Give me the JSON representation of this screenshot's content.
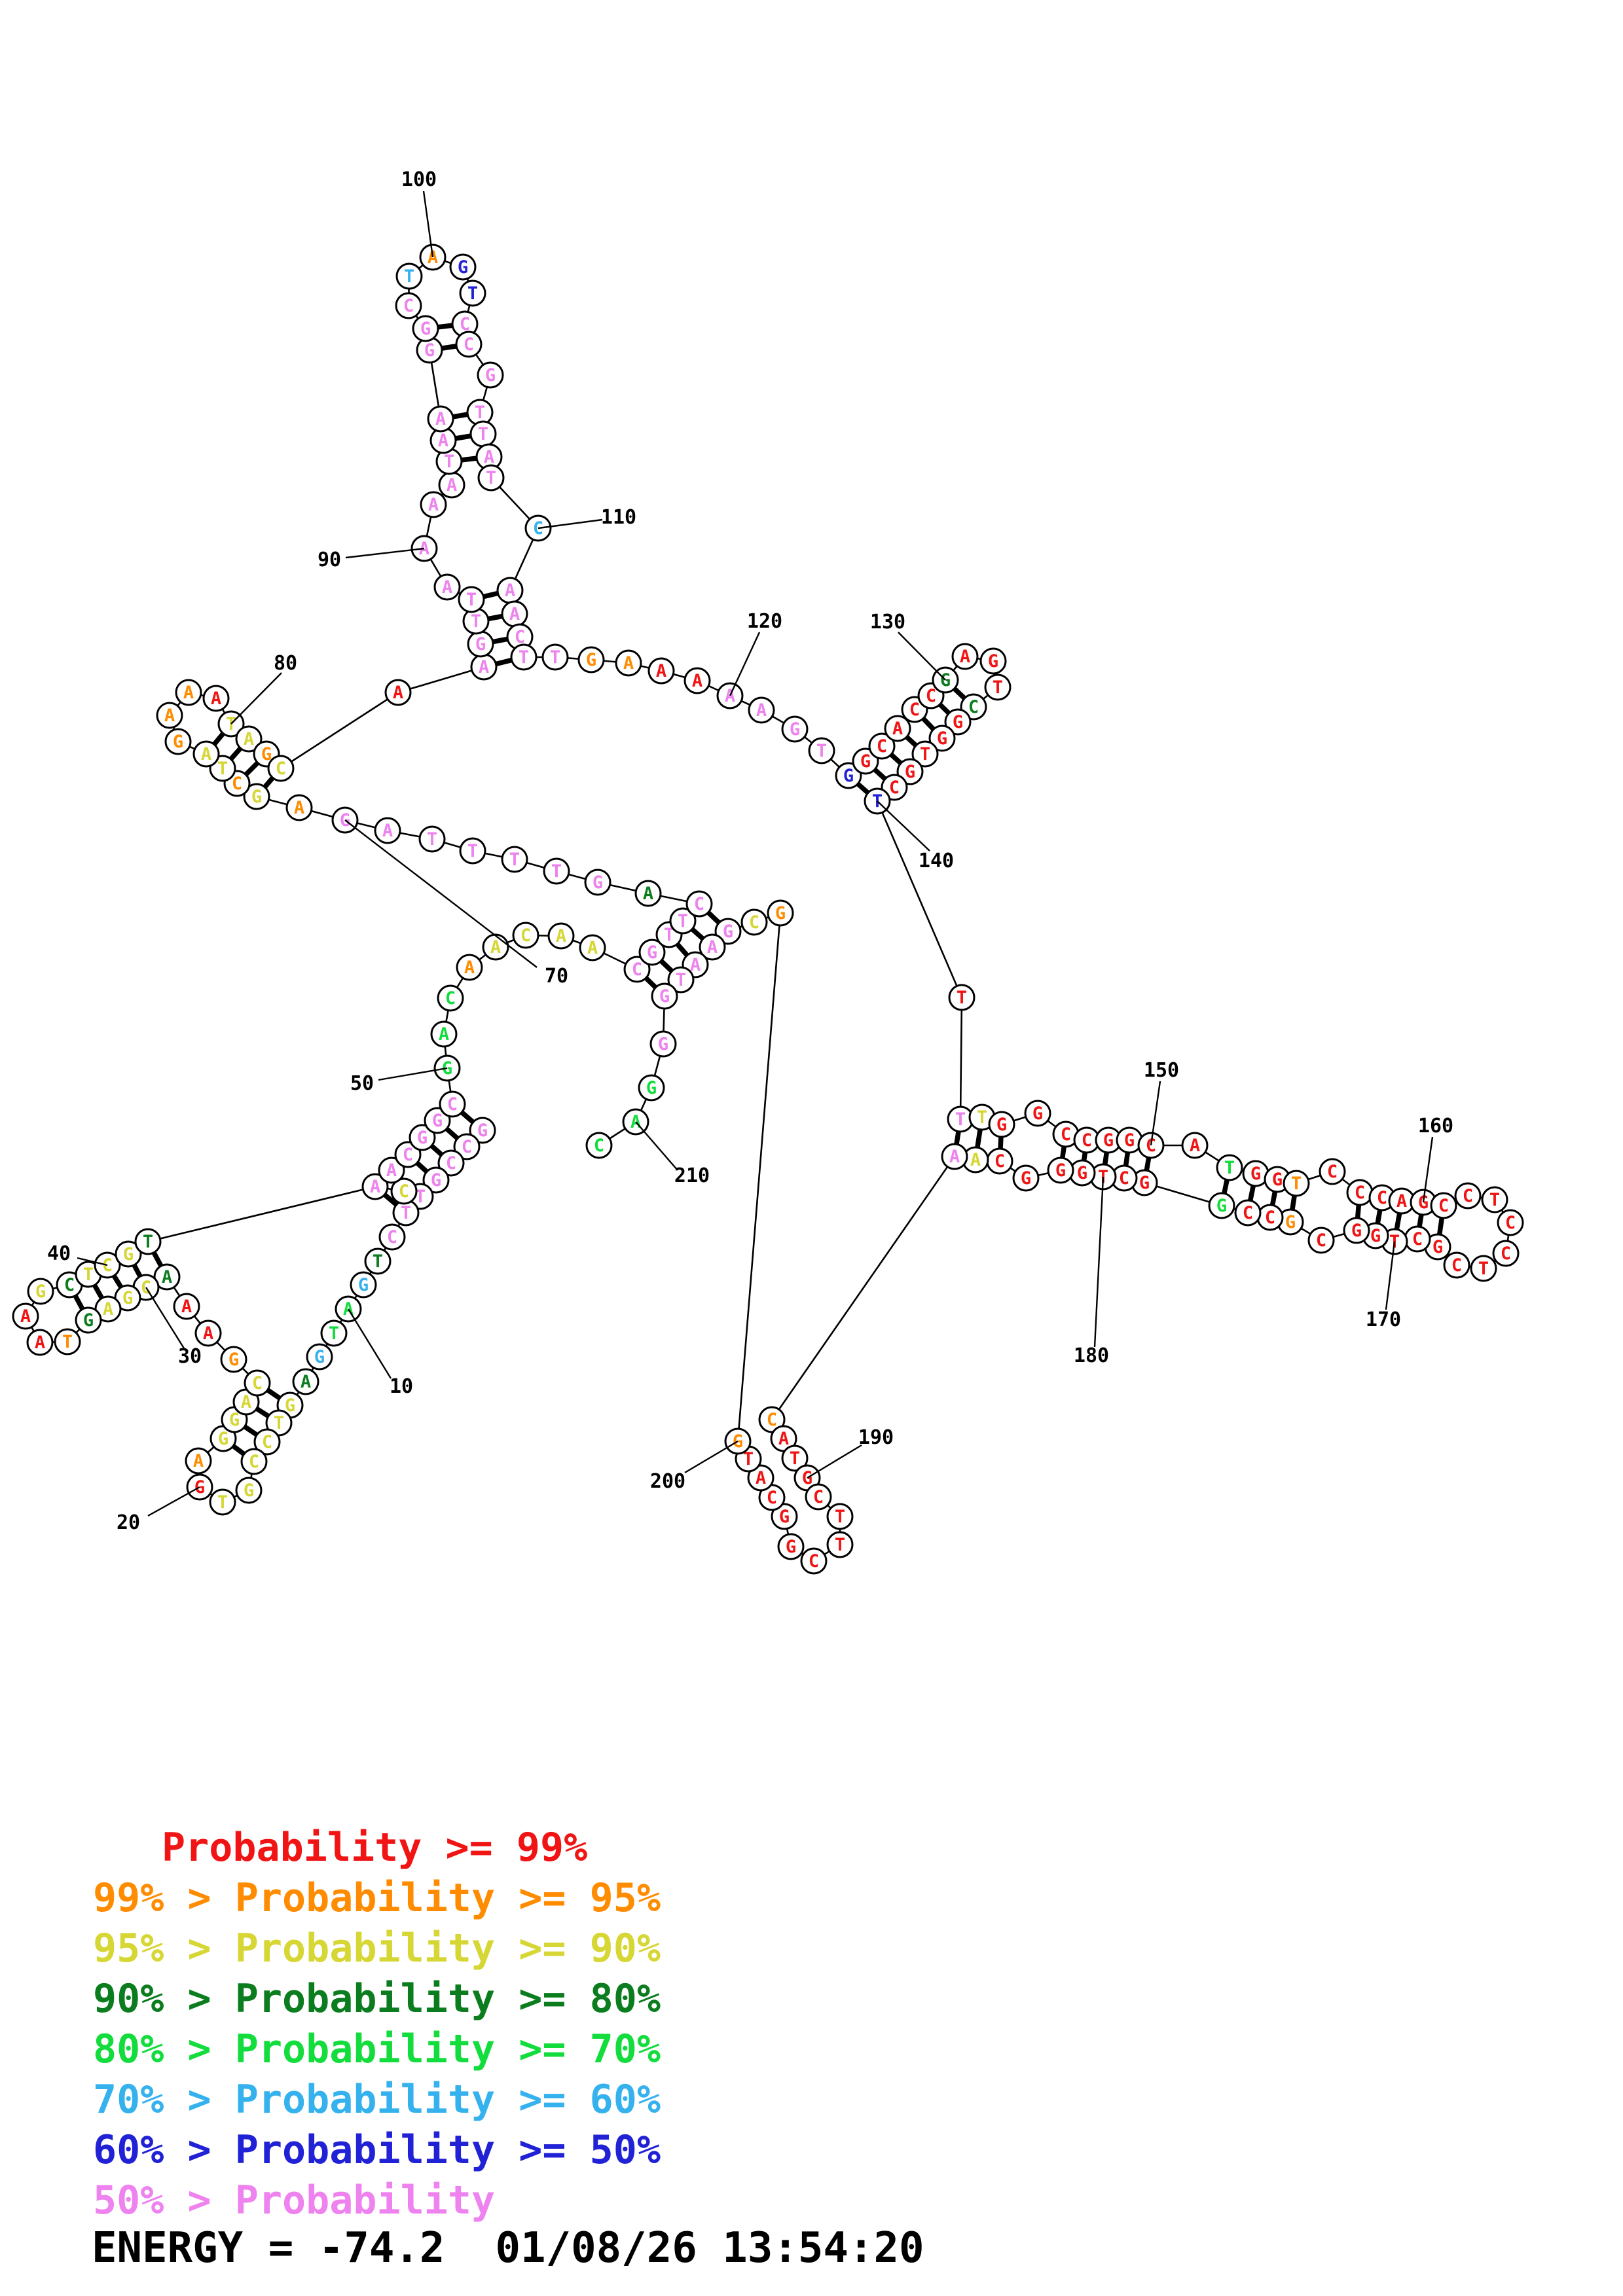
{
  "colors": {
    "r": "#f01414",
    "o": "#ff8c00",
    "y": "#d6d635",
    "dg": "#0c7d1f",
    "g": "#12dd3c",
    "c": "#35b2ee",
    "b": "#2121d6",
    "m": "#ee82ee",
    "ink": "#000000"
  },
  "legend": {
    "items": [
      {
        "text": "Probability >= 99%",
        "color": "r"
      },
      {
        "text": "99% > Probability >= 95%",
        "color": "o"
      },
      {
        "text": "95% > Probability >= 90%",
        "color": "y"
      },
      {
        "text": "90% > Probability >= 80%",
        "color": "dg"
      },
      {
        "text": "80% > Probability >= 70%",
        "color": "g"
      },
      {
        "text": "70% > Probability >= 60%",
        "color": "c"
      },
      {
        "text": "60% > Probability >= 50%",
        "color": "b"
      },
      {
        "text": "50% > Probability",
        "color": "m"
      }
    ]
  },
  "footer": {
    "energy_text": "ENERGY = -74.2  01/08/26 13:54:20"
  },
  "structure": {
    "node_radius": 19,
    "nodes": [
      [
        737,
        1727,
        "G",
        "m"
      ],
      [
        713,
        1752,
        "C",
        "m"
      ],
      [
        689,
        1777,
        "C",
        "m"
      ],
      [
        666,
        1803,
        "G",
        "m"
      ],
      [
        642,
        1828,
        "T",
        "m"
      ],
      [
        620,
        1853,
        "T",
        "m"
      ],
      [
        599,
        1890,
        "C",
        "m"
      ],
      [
        577,
        1927,
        "T",
        "dg"
      ],
      [
        555,
        1963,
        "G",
        "c"
      ],
      [
        532,
        2000,
        "A",
        "g"
      ],
      [
        510,
        2037,
        "T",
        "g"
      ],
      [
        488,
        2073,
        "G",
        "c"
      ],
      [
        467,
        2111,
        "A",
        "dg"
      ],
      [
        443,
        2147,
        "G",
        "y"
      ],
      [
        426,
        2174,
        "T",
        "y"
      ],
      [
        408,
        2203,
        "C",
        "y"
      ],
      [
        388,
        2233,
        "C",
        "y"
      ],
      [
        380,
        2277,
        "G",
        "y"
      ],
      [
        340,
        2295,
        "T",
        "y"
      ],
      [
        305,
        2272,
        "G",
        "r"
      ],
      [
        303,
        2232,
        "A",
        "o"
      ],
      [
        341,
        2198,
        "G",
        "y"
      ],
      [
        358,
        2169,
        "G",
        "y"
      ],
      [
        376,
        2142,
        "A",
        "y"
      ],
      [
        393,
        2113,
        "C",
        "y"
      ],
      [
        357,
        2077,
        "G",
        "o"
      ],
      [
        318,
        2037,
        "A",
        "r"
      ],
      [
        285,
        1996,
        "A",
        "r"
      ],
      [
        255,
        1951,
        "A",
        "dg"
      ],
      [
        223,
        1967,
        "C",
        "y"
      ],
      [
        195,
        1983,
        "G",
        "y"
      ],
      [
        165,
        2000,
        "A",
        "y"
      ],
      [
        135,
        2017,
        "G",
        "dg"
      ],
      [
        103,
        2050,
        "T",
        "o"
      ],
      [
        61,
        2051,
        "A",
        "r"
      ],
      [
        39,
        2011,
        "A",
        "r"
      ],
      [
        62,
        1973,
        "G",
        "y"
      ],
      [
        106,
        1963,
        "C",
        "dg"
      ],
      [
        135,
        1947,
        "T",
        "y"
      ],
      [
        164,
        1933,
        "C",
        "y"
      ],
      [
        196,
        1916,
        "G",
        "y"
      ],
      [
        226,
        1897,
        "T",
        "dg"
      ],
      [
        573,
        1813,
        "A",
        "m"
      ],
      [
        617,
        1820,
        "C",
        "y"
      ],
      [
        598,
        1788,
        "A",
        "m"
      ],
      [
        623,
        1764,
        "C",
        "m"
      ],
      [
        645,
        1738,
        "G",
        "m"
      ],
      [
        668,
        1712,
        "G",
        "m"
      ],
      [
        691,
        1687,
        "C",
        "m"
      ],
      [
        683,
        1632,
        "G",
        "g"
      ],
      [
        678,
        1580,
        "A",
        "g"
      ],
      [
        688,
        1525,
        "C",
        "g"
      ],
      [
        717,
        1478,
        "A",
        "o"
      ],
      [
        757,
        1447,
        "A",
        "y"
      ],
      [
        803,
        1429,
        "C",
        "y"
      ],
      [
        857,
        1430,
        "A",
        "y"
      ],
      [
        905,
        1448,
        "A",
        "y"
      ],
      [
        973,
        1481,
        "C",
        "m"
      ],
      [
        996,
        1455,
        "G",
        "m"
      ],
      [
        1022,
        1428,
        "T",
        "m"
      ],
      [
        1043,
        1407,
        "T",
        "m"
      ],
      [
        1068,
        1381,
        "C",
        "m"
      ],
      [
        990,
        1365,
        "A",
        "dg"
      ],
      [
        913,
        1348,
        "G",
        "m"
      ],
      [
        850,
        1331,
        "T",
        "m"
      ],
      [
        786,
        1313,
        "T",
        "m"
      ],
      [
        722,
        1300,
        "T",
        "m"
      ],
      [
        660,
        1282,
        "T",
        "m"
      ],
      [
        592,
        1269,
        "A",
        "m"
      ],
      [
        527,
        1253,
        "G",
        "m"
      ],
      [
        457,
        1234,
        "A",
        "o"
      ],
      [
        392,
        1217,
        "G",
        "y"
      ],
      [
        362,
        1197,
        "C",
        "o"
      ],
      [
        340,
        1174,
        "T",
        "y"
      ],
      [
        315,
        1152,
        "A",
        "y"
      ],
      [
        272,
        1133,
        "G",
        "o"
      ],
      [
        259,
        1093,
        "A",
        "o"
      ],
      [
        288,
        1058,
        "A",
        "o"
      ],
      [
        330,
        1067,
        "A",
        "r"
      ],
      [
        353,
        1106,
        "T",
        "y"
      ],
      [
        380,
        1129,
        "A",
        "y"
      ],
      [
        407,
        1152,
        "G",
        "o"
      ],
      [
        429,
        1174,
        "C",
        "y"
      ],
      [
        608,
        1058,
        "A",
        "r"
      ],
      [
        739,
        1019,
        "A",
        "m"
      ],
      [
        734,
        984,
        "G",
        "m"
      ],
      [
        727,
        949,
        "T",
        "m"
      ],
      [
        720,
        916,
        "T",
        "m"
      ],
      [
        683,
        897,
        "A",
        "m"
      ],
      [
        648,
        838,
        "A",
        "m"
      ],
      [
        662,
        771,
        "A",
        "m"
      ],
      [
        690,
        741,
        "A",
        "m"
      ],
      [
        686,
        705,
        "T",
        "m"
      ],
      [
        677,
        673,
        "A",
        "m"
      ],
      [
        673,
        640,
        "A",
        "m"
      ],
      [
        656,
        535,
        "G",
        "m"
      ],
      [
        650,
        502,
        "G",
        "m"
      ],
      [
        624,
        467,
        "C",
        "m"
      ],
      [
        625,
        422,
        "T",
        "c"
      ],
      [
        661,
        393,
        "A",
        "o"
      ],
      [
        707,
        408,
        "G",
        "b"
      ],
      [
        722,
        448,
        "T",
        "b"
      ],
      [
        710,
        495,
        "C",
        "m"
      ],
      [
        716,
        526,
        "C",
        "m"
      ],
      [
        749,
        573,
        "G",
        "m"
      ],
      [
        733,
        630,
        "T",
        "m"
      ],
      [
        738,
        663,
        "T",
        "m"
      ],
      [
        747,
        698,
        "A",
        "m"
      ],
      [
        750,
        730,
        "T",
        "m"
      ],
      [
        822,
        807,
        "C",
        "c"
      ],
      [
        779,
        902,
        "A",
        "m"
      ],
      [
        786,
        938,
        "A",
        "m"
      ],
      [
        794,
        973,
        "C",
        "m"
      ],
      [
        800,
        1004,
        "T",
        "m"
      ],
      [
        848,
        1004,
        "T",
        "m"
      ],
      [
        903,
        1008,
        "G",
        "o"
      ],
      [
        960,
        1013,
        "A",
        "o"
      ],
      [
        1010,
        1025,
        "A",
        "r"
      ],
      [
        1065,
        1040,
        "A",
        "r"
      ],
      [
        1115,
        1063,
        "A",
        "m"
      ],
      [
        1163,
        1085,
        "A",
        "m"
      ],
      [
        1214,
        1114,
        "G",
        "m"
      ],
      [
        1255,
        1147,
        "T",
        "m"
      ],
      [
        1296,
        1185,
        "G",
        "b"
      ],
      [
        1322,
        1163,
        "G",
        "r"
      ],
      [
        1347,
        1140,
        "C",
        "r"
      ],
      [
        1371,
        1113,
        "A",
        "r"
      ],
      [
        1397,
        1084,
        "C",
        "r"
      ],
      [
        1422,
        1063,
        "C",
        "r"
      ],
      [
        1444,
        1039,
        "G",
        "dg"
      ],
      [
        1474,
        1003,
        "A",
        "r"
      ],
      [
        1517,
        1010,
        "G",
        "r"
      ],
      [
        1524,
        1050,
        "T",
        "r"
      ],
      [
        1487,
        1080,
        "C",
        "dg"
      ],
      [
        1463,
        1103,
        "G",
        "r"
      ],
      [
        1439,
        1128,
        "G",
        "r"
      ],
      [
        1413,
        1152,
        "T",
        "r"
      ],
      [
        1390,
        1179,
        "G",
        "r"
      ],
      [
        1366,
        1203,
        "C",
        "r"
      ],
      [
        1340,
        1224,
        "T",
        "b"
      ],
      [
        1469,
        1524,
        "T",
        "r"
      ],
      [
        1467,
        1710,
        "T",
        "m"
      ],
      [
        1500,
        1707,
        "T",
        "y"
      ],
      [
        1530,
        1718,
        "G",
        "r"
      ],
      [
        1585,
        1701,
        "G",
        "r"
      ],
      [
        1628,
        1733,
        "C",
        "r"
      ],
      [
        1660,
        1742,
        "C",
        "r"
      ],
      [
        1693,
        1742,
        "G",
        "r"
      ],
      [
        1725,
        1742,
        "G",
        "r"
      ],
      [
        1758,
        1750,
        "C",
        "r"
      ],
      [
        1825,
        1750,
        "A",
        "r"
      ],
      [
        1878,
        1784,
        "T",
        "g"
      ],
      [
        1918,
        1793,
        "G",
        "r"
      ],
      [
        1951,
        1802,
        "G",
        "r"
      ],
      [
        1980,
        1808,
        "T",
        "o"
      ],
      [
        2035,
        1790,
        "C",
        "r"
      ],
      [
        2077,
        1822,
        "C",
        "r"
      ],
      [
        2111,
        1830,
        "C",
        "r"
      ],
      [
        2141,
        1835,
        "A",
        "r"
      ],
      [
        2174,
        1837,
        "G",
        "r"
      ],
      [
        2205,
        1842,
        "C",
        "r"
      ],
      [
        2242,
        1827,
        "C",
        "r"
      ],
      [
        2283,
        1833,
        "T",
        "r"
      ],
      [
        2307,
        1868,
        "C",
        "r"
      ],
      [
        2300,
        1915,
        "C",
        "r"
      ],
      [
        2266,
        1938,
        "T",
        "r"
      ],
      [
        2225,
        1933,
        "C",
        "r"
      ],
      [
        2196,
        1905,
        "G",
        "r"
      ],
      [
        2165,
        1893,
        "C",
        "r"
      ],
      [
        2130,
        1897,
        "T",
        "r"
      ],
      [
        2101,
        1888,
        "G",
        "r"
      ],
      [
        2072,
        1880,
        "G",
        "r"
      ],
      [
        2018,
        1895,
        "C",
        "r"
      ],
      [
        1971,
        1867,
        "G",
        "o"
      ],
      [
        1940,
        1860,
        "C",
        "r"
      ],
      [
        1906,
        1853,
        "C",
        "r"
      ],
      [
        1866,
        1842,
        "G",
        "g"
      ],
      [
        1748,
        1807,
        "G",
        "r"
      ],
      [
        1717,
        1800,
        "C",
        "r"
      ],
      [
        1685,
        1798,
        "T",
        "r"
      ],
      [
        1653,
        1792,
        "G",
        "r"
      ],
      [
        1620,
        1788,
        "G",
        "r"
      ],
      [
        1567,
        1800,
        "G",
        "r"
      ],
      [
        1527,
        1774,
        "C",
        "r"
      ],
      [
        1490,
        1772,
        "A",
        "y"
      ],
      [
        1458,
        1767,
        "A",
        "m"
      ],
      [
        1179,
        2169,
        "C",
        "o"
      ],
      [
        1197,
        2198,
        "A",
        "r"
      ],
      [
        1214,
        2228,
        "T",
        "r"
      ],
      [
        1233,
        2258,
        "G",
        "r"
      ],
      [
        1250,
        2287,
        "C",
        "r"
      ],
      [
        1283,
        2317,
        "T",
        "r"
      ],
      [
        1283,
        2360,
        "T",
        "r"
      ],
      [
        1243,
        2385,
        "C",
        "r"
      ],
      [
        1208,
        2363,
        "G",
        "r"
      ],
      [
        1198,
        2317,
        "G",
        "r"
      ],
      [
        1179,
        2288,
        "C",
        "r"
      ],
      [
        1162,
        2258,
        "A",
        "r"
      ],
      [
        1143,
        2229,
        "T",
        "r"
      ],
      [
        1127,
        2202,
        "G",
        "o"
      ],
      [
        1192,
        1395,
        "G",
        "o"
      ],
      [
        1152,
        1409,
        "C",
        "y"
      ],
      [
        1112,
        1423,
        "G",
        "m"
      ],
      [
        1088,
        1447,
        "A",
        "m"
      ],
      [
        1062,
        1474,
        "A",
        "m"
      ],
      [
        1040,
        1497,
        "T",
        "m"
      ],
      [
        1015,
        1522,
        "G",
        "m"
      ],
      [
        1013,
        1595,
        "G",
        "m"
      ],
      [
        995,
        1662,
        "G",
        "g"
      ],
      [
        971,
        1714,
        "A",
        "g"
      ],
      [
        915,
        1750,
        "C",
        "g"
      ]
    ],
    "pairs": [
      [
        1,
        49
      ],
      [
        2,
        48
      ],
      [
        3,
        47
      ],
      [
        4,
        46
      ],
      [
        5,
        45
      ],
      [
        6,
        43
      ],
      [
        14,
        25
      ],
      [
        15,
        24
      ],
      [
        16,
        23
      ],
      [
        17,
        22
      ],
      [
        29,
        42
      ],
      [
        30,
        41
      ],
      [
        31,
        40
      ],
      [
        32,
        39
      ],
      [
        33,
        38
      ],
      [
        58,
        207
      ],
      [
        59,
        206
      ],
      [
        60,
        205
      ],
      [
        61,
        204
      ],
      [
        62,
        203
      ],
      [
        72,
        83
      ],
      [
        73,
        82
      ],
      [
        74,
        81
      ],
      [
        75,
        80
      ],
      [
        85,
        114
      ],
      [
        86,
        113
      ],
      [
        87,
        112
      ],
      [
        88,
        111
      ],
      [
        93,
        108
      ],
      [
        94,
        107
      ],
      [
        95,
        106
      ],
      [
        96,
        104
      ],
      [
        97,
        103
      ],
      [
        124,
        140
      ],
      [
        125,
        139
      ],
      [
        126,
        138
      ],
      [
        127,
        137
      ],
      [
        128,
        136
      ],
      [
        129,
        135
      ],
      [
        130,
        134
      ],
      [
        142,
        186
      ],
      [
        143,
        185
      ],
      [
        144,
        184
      ],
      [
        146,
        182
      ],
      [
        147,
        181
      ],
      [
        148,
        180
      ],
      [
        149,
        179
      ],
      [
        150,
        178
      ],
      [
        152,
        177
      ],
      [
        153,
        176
      ],
      [
        154,
        175
      ],
      [
        155,
        174
      ],
      [
        157,
        172
      ],
      [
        158,
        171
      ],
      [
        159,
        170
      ],
      [
        160,
        169
      ],
      [
        161,
        168
      ]
    ],
    "labels": [
      [
        "10",
        613,
        2119,
        597,
        2106,
        10
      ],
      [
        "20",
        196,
        2327,
        226,
        2316,
        20
      ],
      [
        "30",
        290,
        2073,
        281,
        2060,
        30
      ],
      [
        "40",
        90,
        1916,
        118,
        1922,
        40
      ],
      [
        "50",
        553,
        1656,
        578,
        1650,
        50
      ],
      [
        "70",
        850,
        1492,
        820,
        1478,
        70
      ],
      [
        "80",
        436,
        1014,
        430,
        1028,
        80
      ],
      [
        "90",
        503,
        856,
        528,
        852,
        90
      ],
      [
        "100",
        640,
        275,
        647,
        292,
        100
      ],
      [
        "110",
        945,
        791,
        920,
        794,
        110
      ],
      [
        "120",
        1168,
        950,
        1160,
        966,
        120
      ],
      [
        "130",
        1356,
        951,
        1372,
        966,
        130
      ],
      [
        "140",
        1430,
        1316,
        1420,
        1300,
        140
      ],
      [
        "150",
        1774,
        1636,
        1772,
        1652,
        150
      ],
      [
        "160",
        2193,
        1721,
        2188,
        1737,
        160
      ],
      [
        "170",
        2113,
        2017,
        2117,
        2001,
        170
      ],
      [
        "180",
        1667,
        2072,
        1672,
        2058,
        180
      ],
      [
        "190",
        1338,
        2197,
        1316,
        2208,
        190
      ],
      [
        "200",
        1020,
        2264,
        1046,
        2250,
        200
      ],
      [
        "210",
        1057,
        1797,
        1035,
        1788,
        210
      ]
    ]
  }
}
